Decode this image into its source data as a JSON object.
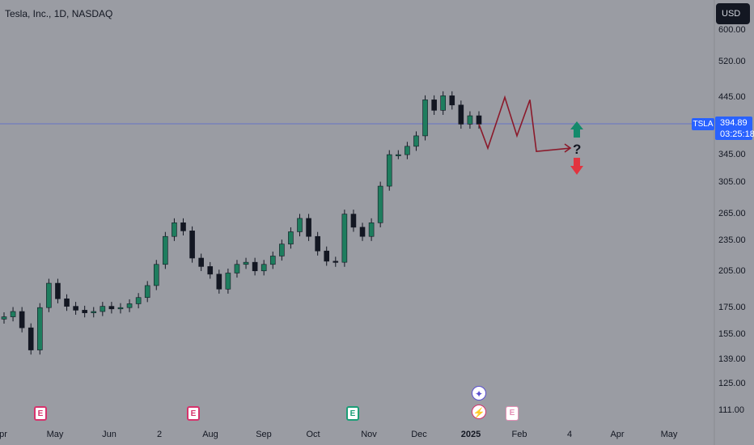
{
  "header": {
    "title": "Tesla, Inc., 1D, NASDAQ"
  },
  "currency_button": "USD",
  "price_tag": {
    "ticker": "TSLA",
    "price": "394.89",
    "countdown": "03:25:18"
  },
  "y_axis_labels": [
    "600.00",
    "520.00",
    "445.00",
    "345.00",
    "305.00",
    "265.00",
    "235.00",
    "205.00",
    "175.00",
    "155.00",
    "139.00",
    "125.00",
    "111.00"
  ],
  "x_axis_labels": [
    "pr",
    "May",
    "Jun",
    "2",
    "Aug",
    "Sep",
    "Oct",
    "Nov",
    "Dec",
    "2025",
    "Feb",
    "4",
    "Apr",
    "May"
  ],
  "projection_question": "?",
  "event_markers": [
    "E",
    "E",
    "E",
    "E"
  ],
  "colors": {
    "background": "#9a9ca3",
    "candle_up": "#1e7d5e",
    "candle_down": "#131722",
    "projection": "#8b1a2b",
    "arrow_up": "#138a6b",
    "arrow_down": "#e2343f",
    "price_line": "#5b6bcf"
  },
  "chart_data": {
    "type": "candlestick",
    "title": "Tesla, Inc., 1D, NASDAQ",
    "y_scale": "log",
    "ylim": [
      105,
      640
    ],
    "current_price": 394.89,
    "closes": [
      168,
      172,
      160,
      145,
      175,
      195,
      182,
      176,
      173,
      171,
      172,
      176,
      174,
      175,
      178,
      183,
      193,
      212,
      240,
      255,
      246,
      218,
      210,
      203,
      190,
      204,
      212,
      214,
      206,
      212,
      220,
      232,
      245,
      260,
      240,
      225,
      215,
      214,
      265,
      250,
      240,
      255,
      300,
      345,
      345,
      358,
      375,
      440,
      420,
      448,
      430,
      395,
      410,
      395
    ],
    "projection": [
      395,
      355,
      445,
      375,
      440,
      350,
      355
    ],
    "outlook": [
      "up",
      "down"
    ]
  }
}
